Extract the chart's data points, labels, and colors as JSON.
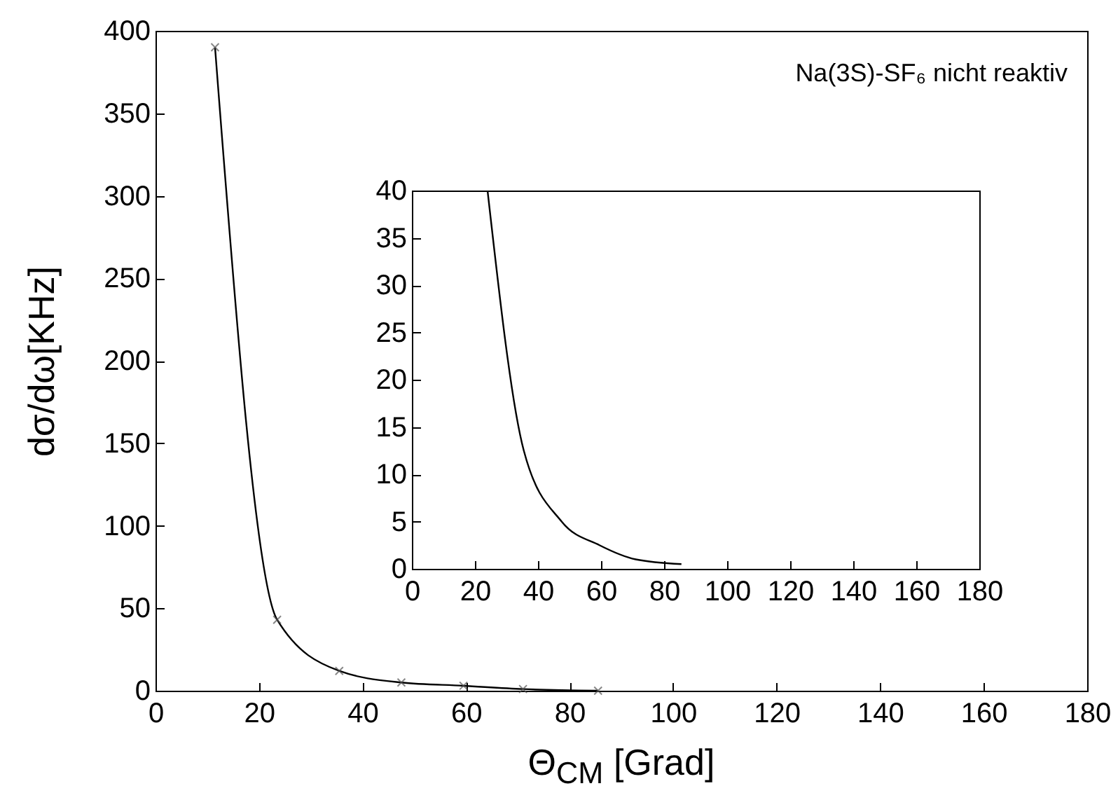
{
  "chart_data": [
    {
      "type": "line",
      "xlabel": "Θ$_{CM}$ [Grad]",
      "ylabel": "dσ/dω[KHz]",
      "annotations": [
        "Na(3S)-SF₆ nicht reaktiv"
      ],
      "x": [
        11.5,
        23.5,
        35.5,
        47.5,
        59.5,
        71,
        85.5
      ],
      "values": [
        390,
        43,
        12,
        5,
        3,
        1,
        0
      ],
      "color": "#000000",
      "marker": "cross",
      "xlim": [
        0,
        180
      ],
      "xticks": [
        0,
        20,
        40,
        60,
        80,
        100,
        120,
        140,
        160,
        180
      ],
      "ylim": [
        0,
        400
      ],
      "yticks": [
        0,
        50,
        100,
        150,
        200,
        250,
        300,
        350,
        400
      ],
      "grid": false
    },
    {
      "type": "line",
      "x": [
        24,
        35.5,
        47.5,
        59.5,
        71,
        85.5
      ],
      "values": [
        40,
        12.5,
        5,
        2.5,
        1,
        0.5
      ],
      "color": "#000000",
      "xlim": [
        0,
        180
      ],
      "xticks": [
        0,
        20,
        40,
        60,
        80,
        100,
        120,
        140,
        160,
        180
      ],
      "ylim": [
        0,
        40
      ],
      "yticks": [
        0,
        5,
        10,
        15,
        20,
        25,
        30,
        35,
        40
      ],
      "grid": false
    }
  ]
}
